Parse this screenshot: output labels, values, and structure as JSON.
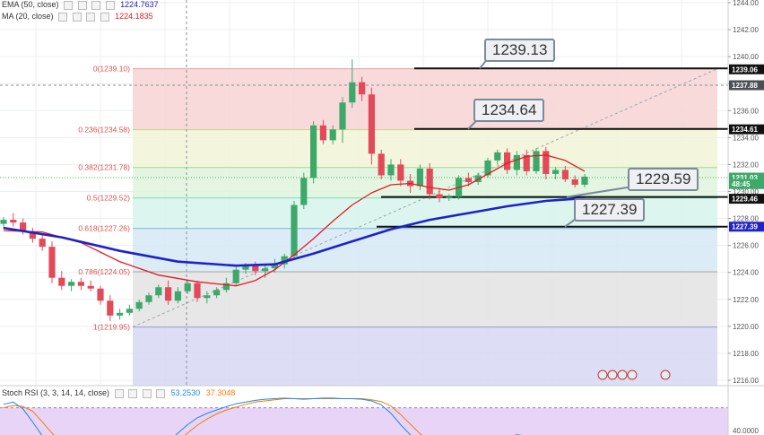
{
  "indicators": [
    {
      "label": "EMA (50, close)",
      "value": "1224.7637",
      "color": "#1e22c8"
    },
    {
      "label": "MA (20, close)",
      "value": "1224.1835",
      "color": "#e31b23"
    }
  ],
  "stoch": {
    "label": "Stoch RSI (3, 3, 14, 14, close)",
    "k": "53.2530",
    "d": "37.3048",
    "k_color": "#1e88e5",
    "d_color": "#f57c00",
    "tick": "40.0000"
  },
  "callouts": [
    {
      "text": "1239.13",
      "price": 1239.13
    },
    {
      "text": "1234.64",
      "price": 1234.64
    },
    {
      "text": "1229.59",
      "price": 1229.59
    },
    {
      "text": "1227.39",
      "price": 1227.39
    }
  ],
  "chart_data": {
    "type": "candlestick",
    "ylim": [
      1215.6,
      1244.2
    ],
    "y_ticks": [
      "1216.00",
      "1218.00",
      "1220.00",
      "1222.00",
      "1224.00",
      "1226.00",
      "1228.00",
      "1230.00",
      "1232.00",
      "1234.00",
      "1236.00",
      "1238.00",
      "1240.00",
      "1242.00",
      "1244.00"
    ],
    "price_tags": [
      {
        "text": "1239.06",
        "price": 1239.06
      },
      {
        "text": "1237.88",
        "price": 1237.88
      },
      {
        "text": "1234.61",
        "price": 1234.61
      },
      {
        "text": "1231.03",
        "price": 1231.03
      },
      {
        "text": "48:45",
        "price": 1230.55
      },
      {
        "text": "1229.46",
        "price": 1229.46
      },
      {
        "text": "1227.39",
        "price": 1227.39
      }
    ],
    "fib_levels": [
      {
        "label": "0(1239.10)",
        "price": 1239.1,
        "fill": "#f7d4d4",
        "line": "#e8a0a0"
      },
      {
        "label": "0.236(1234.58)",
        "price": 1234.58,
        "fill": "#f1f5d6",
        "line": "#c9d48a"
      },
      {
        "label": "0.382(1231.78)",
        "price": 1231.78,
        "fill": "#dff4dc",
        "line": "#9ed69a"
      },
      {
        "label": "0.5(1229.52)",
        "price": 1229.52,
        "fill": "#d6f5ec",
        "line": "#7dd9b8"
      },
      {
        "label": "0.618(1227.26)",
        "price": 1227.26,
        "fill": "#d6e9f5",
        "line": "#7fb6dd"
      },
      {
        "label": "0.786(1224.05)",
        "price": 1224.05,
        "fill": "#e3e3e3",
        "line": "#a6a6a6"
      },
      {
        "label": "1(1219.95)",
        "price": 1219.95,
        "fill": "#d7d7f4",
        "line": "#9a9ad8"
      }
    ],
    "candles": [
      {
        "o": 1227.6,
        "h": 1228.1,
        "l": 1227.2,
        "c": 1227.9
      },
      {
        "o": 1227.9,
        "h": 1228.4,
        "l": 1227.4,
        "c": 1227.7
      },
      {
        "o": 1227.7,
        "h": 1228.0,
        "l": 1226.8,
        "c": 1227.0
      },
      {
        "o": 1227.0,
        "h": 1227.3,
        "l": 1226.2,
        "c": 1226.5
      },
      {
        "o": 1226.5,
        "h": 1226.9,
        "l": 1225.6,
        "c": 1225.9
      },
      {
        "o": 1225.9,
        "h": 1226.3,
        "l": 1223.2,
        "c": 1223.6
      },
      {
        "o": 1223.6,
        "h": 1224.1,
        "l": 1222.7,
        "c": 1223.0
      },
      {
        "o": 1223.0,
        "h": 1223.5,
        "l": 1222.6,
        "c": 1223.3
      },
      {
        "o": 1223.3,
        "h": 1223.6,
        "l": 1222.7,
        "c": 1223.0
      },
      {
        "o": 1223.0,
        "h": 1223.4,
        "l": 1222.6,
        "c": 1222.8
      },
      {
        "o": 1222.8,
        "h": 1223.0,
        "l": 1221.6,
        "c": 1221.9
      },
      {
        "o": 1221.9,
        "h": 1222.3,
        "l": 1220.4,
        "c": 1220.8
      },
      {
        "o": 1220.8,
        "h": 1221.3,
        "l": 1220.5,
        "c": 1221.0
      },
      {
        "o": 1221.0,
        "h": 1221.6,
        "l": 1220.8,
        "c": 1221.3
      },
      {
        "o": 1221.3,
        "h": 1222.0,
        "l": 1221.1,
        "c": 1221.8
      },
      {
        "o": 1221.8,
        "h": 1222.5,
        "l": 1221.6,
        "c": 1222.3
      },
      {
        "o": 1222.3,
        "h": 1223.1,
        "l": 1222.1,
        "c": 1222.9
      },
      {
        "o": 1222.9,
        "h": 1223.4,
        "l": 1221.6,
        "c": 1221.9
      },
      {
        "o": 1221.9,
        "h": 1222.9,
        "l": 1221.7,
        "c": 1222.6
      },
      {
        "o": 1222.6,
        "h": 1223.4,
        "l": 1222.4,
        "c": 1223.2
      },
      {
        "o": 1223.2,
        "h": 1223.4,
        "l": 1221.8,
        "c": 1222.1
      },
      {
        "o": 1222.1,
        "h": 1222.6,
        "l": 1221.7,
        "c": 1222.3
      },
      {
        "o": 1222.3,
        "h": 1222.9,
        "l": 1222.1,
        "c": 1222.7
      },
      {
        "o": 1222.7,
        "h": 1223.6,
        "l": 1222.5,
        "c": 1223.2
      },
      {
        "o": 1223.2,
        "h": 1224.4,
        "l": 1223.0,
        "c": 1224.2
      },
      {
        "o": 1224.2,
        "h": 1224.7,
        "l": 1223.9,
        "c": 1224.5
      },
      {
        "o": 1224.5,
        "h": 1224.8,
        "l": 1223.8,
        "c": 1224.1
      },
      {
        "o": 1224.1,
        "h": 1224.5,
        "l": 1223.6,
        "c": 1224.3
      },
      {
        "o": 1224.3,
        "h": 1225.0,
        "l": 1224.0,
        "c": 1224.6
      },
      {
        "o": 1224.6,
        "h": 1225.4,
        "l": 1224.3,
        "c": 1225.2
      },
      {
        "o": 1225.2,
        "h": 1229.3,
        "l": 1225.0,
        "c": 1229.0
      },
      {
        "o": 1229.0,
        "h": 1231.4,
        "l": 1228.7,
        "c": 1231.0
      },
      {
        "o": 1231.0,
        "h": 1235.2,
        "l": 1230.6,
        "c": 1234.9
      },
      {
        "o": 1234.9,
        "h": 1235.3,
        "l": 1233.5,
        "c": 1233.8
      },
      {
        "o": 1233.8,
        "h": 1234.9,
        "l": 1233.5,
        "c": 1234.6
      },
      {
        "o": 1234.6,
        "h": 1237.0,
        "l": 1233.6,
        "c": 1236.6
      },
      {
        "o": 1236.6,
        "h": 1239.8,
        "l": 1236.2,
        "c": 1238.1
      },
      {
        "o": 1238.1,
        "h": 1238.5,
        "l": 1236.7,
        "c": 1237.2
      },
      {
        "o": 1237.2,
        "h": 1237.7,
        "l": 1232.0,
        "c": 1232.8
      },
      {
        "o": 1232.8,
        "h": 1233.1,
        "l": 1230.9,
        "c": 1231.2
      },
      {
        "o": 1231.2,
        "h": 1232.4,
        "l": 1230.8,
        "c": 1232.0
      },
      {
        "o": 1232.0,
        "h": 1232.4,
        "l": 1230.4,
        "c": 1230.8
      },
      {
        "o": 1230.8,
        "h": 1231.3,
        "l": 1229.9,
        "c": 1230.4
      },
      {
        "o": 1230.4,
        "h": 1232.0,
        "l": 1230.1,
        "c": 1231.7
      },
      {
        "o": 1231.7,
        "h": 1232.1,
        "l": 1229.4,
        "c": 1229.8
      },
      {
        "o": 1229.8,
        "h": 1230.2,
        "l": 1229.2,
        "c": 1229.5
      },
      {
        "o": 1229.5,
        "h": 1229.8,
        "l": 1229.3,
        "c": 1229.6
      },
      {
        "o": 1229.6,
        "h": 1231.2,
        "l": 1229.4,
        "c": 1231.0
      },
      {
        "o": 1231.0,
        "h": 1231.4,
        "l": 1230.4,
        "c": 1230.7
      },
      {
        "o": 1230.7,
        "h": 1231.4,
        "l": 1230.5,
        "c": 1231.2
      },
      {
        "o": 1231.2,
        "h": 1232.5,
        "l": 1231.0,
        "c": 1232.3
      },
      {
        "o": 1232.3,
        "h": 1233.1,
        "l": 1232.0,
        "c": 1232.9
      },
      {
        "o": 1232.9,
        "h": 1233.2,
        "l": 1231.3,
        "c": 1231.6
      },
      {
        "o": 1231.6,
        "h": 1233.0,
        "l": 1231.2,
        "c": 1232.7
      },
      {
        "o": 1232.7,
        "h": 1233.1,
        "l": 1231.2,
        "c": 1231.5
      },
      {
        "o": 1231.5,
        "h": 1233.2,
        "l": 1231.3,
        "c": 1233.0
      },
      {
        "o": 1233.0,
        "h": 1233.3,
        "l": 1230.9,
        "c": 1231.3
      },
      {
        "o": 1231.3,
        "h": 1231.8,
        "l": 1230.9,
        "c": 1231.6
      },
      {
        "o": 1231.6,
        "h": 1231.9,
        "l": 1230.7,
        "c": 1230.9
      },
      {
        "o": 1230.9,
        "h": 1231.2,
        "l": 1230.3,
        "c": 1230.5
      },
      {
        "o": 1230.5,
        "h": 1231.3,
        "l": 1230.3,
        "c": 1231.1
      }
    ],
    "ema50": [
      [
        0,
        1227.3
      ],
      [
        6,
        1226.6
      ],
      [
        12,
        1225.6
      ],
      [
        18,
        1224.8
      ],
      [
        24,
        1224.5
      ],
      [
        28,
        1224.6
      ],
      [
        32,
        1225.4
      ],
      [
        36,
        1226.3
      ],
      [
        40,
        1227.2
      ],
      [
        44,
        1227.9
      ],
      [
        48,
        1228.4
      ],
      [
        52,
        1228.9
      ],
      [
        56,
        1229.3
      ],
      [
        60,
        1229.5
      ]
    ],
    "ma20": [
      [
        0,
        1227.1
      ],
      [
        4,
        1227.0
      ],
      [
        8,
        1226.2
      ],
      [
        12,
        1224.8
      ],
      [
        16,
        1223.8
      ],
      [
        20,
        1223.3
      ],
      [
        24,
        1223.0
      ],
      [
        26,
        1223.4
      ],
      [
        28,
        1224.2
      ],
      [
        30,
        1225.3
      ],
      [
        32,
        1226.5
      ],
      [
        34,
        1227.8
      ],
      [
        36,
        1229.0
      ],
      [
        38,
        1229.9
      ],
      [
        40,
        1230.5
      ],
      [
        42,
        1230.6
      ],
      [
        44,
        1230.3
      ],
      [
        46,
        1230.1
      ],
      [
        48,
        1230.5
      ],
      [
        50,
        1231.3
      ],
      [
        52,
        1232.1
      ],
      [
        54,
        1232.6
      ],
      [
        56,
        1232.7
      ],
      [
        58,
        1232.3
      ],
      [
        60,
        1231.5
      ]
    ],
    "stoch_rsi": {
      "k": [
        86,
        90,
        78,
        55,
        30,
        12,
        5,
        3,
        2,
        2,
        3,
        2,
        2,
        2,
        3,
        5,
        10,
        20,
        35,
        50,
        62,
        70,
        76,
        82,
        87,
        90,
        93,
        95,
        96,
        97,
        96,
        95,
        96,
        97,
        97,
        96,
        96,
        95,
        92,
        85,
        70,
        50,
        32,
        20,
        12,
        8,
        6,
        5,
        5,
        8,
        14,
        22,
        28,
        32,
        30,
        24,
        16,
        10,
        6,
        4,
        3
      ],
      "d": [
        80,
        84,
        82,
        74,
        55,
        35,
        18,
        8,
        4,
        3,
        2,
        3,
        2,
        2,
        2,
        3,
        6,
        12,
        22,
        35,
        49,
        60,
        69,
        76,
        81,
        86,
        90,
        92,
        94,
        96,
        96,
        96,
        96,
        96,
        96,
        96,
        96,
        96,
        94,
        91,
        83,
        68,
        51,
        34,
        22,
        14,
        9,
        6,
        5,
        6,
        9,
        15,
        22,
        27,
        30,
        29,
        24,
        18,
        12,
        8,
        5
      ]
    }
  }
}
